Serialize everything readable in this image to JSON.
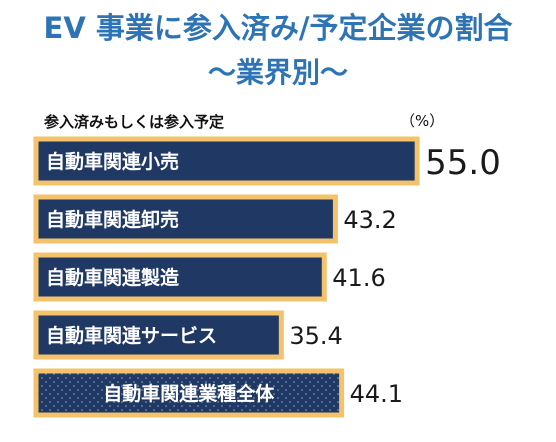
{
  "header": {
    "title": "EV 事業に参入済み/予定企業の割合",
    "subtitle": "～業界別～"
  },
  "chart_caption": "参入済みもしくは参入予定",
  "unit_label": "（%）",
  "colors": {
    "title": "#2e74b5",
    "bar_fill": "#1f3864",
    "bar_border": "#f4c26b",
    "value_text": "#1a1a1a"
  },
  "chart_data": {
    "type": "bar",
    "orientation": "horizontal",
    "categories": [
      "自動車関連小売",
      "自動車関連卸売",
      "自動車関連製造",
      "自動車関連サービス",
      "自動車関連業種全体"
    ],
    "values": [
      55.0,
      43.2,
      41.6,
      35.4,
      44.1
    ],
    "value_labels": [
      "55.0",
      "43.2",
      "41.6",
      "35.4",
      "44.1"
    ],
    "highlight_index": 0,
    "total_index": 4,
    "xlim": [
      0,
      60
    ],
    "grid": false,
    "legend": "none"
  }
}
